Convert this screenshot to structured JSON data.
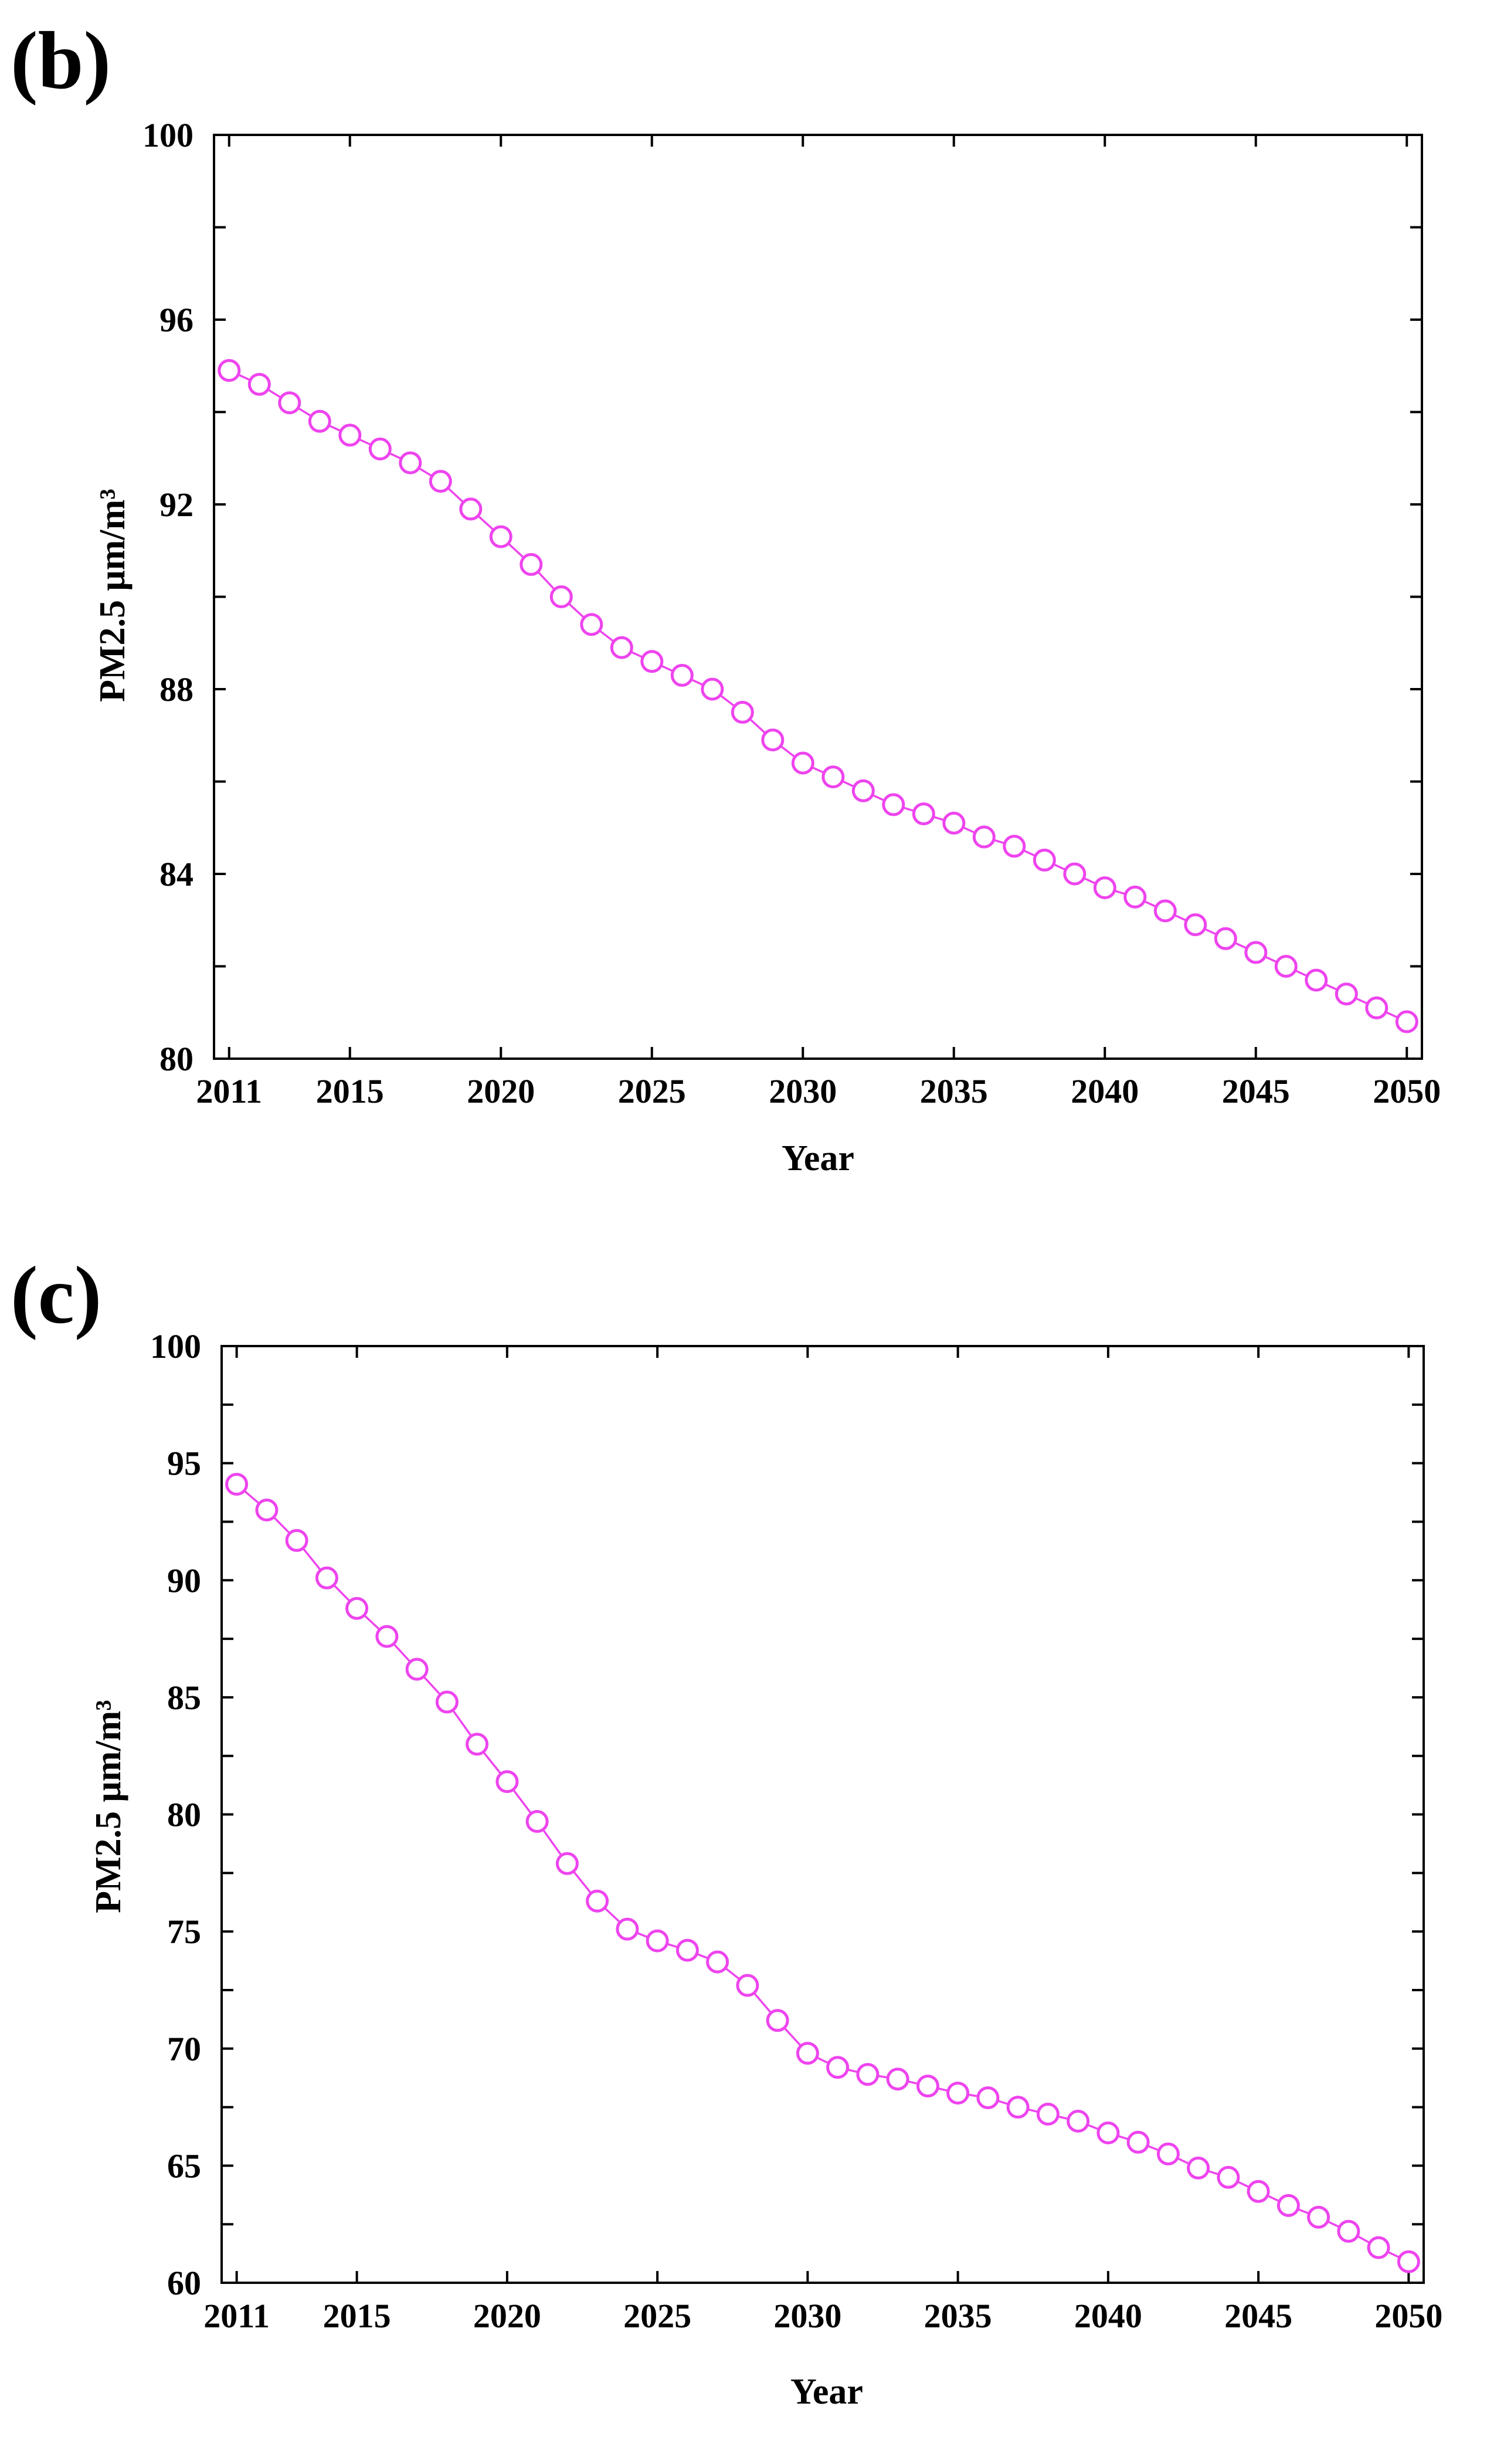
{
  "colors": {
    "series": "#ee44ee",
    "axis": "#000000",
    "background": "#ffffff"
  },
  "chart_data": [
    {
      "type": "line",
      "panel_label": "(b)",
      "xlabel": "Year",
      "ylabel": "PM2.5 μm/m³",
      "xlim": [
        2010.5,
        2050.5
      ],
      "ylim": [
        80,
        100
      ],
      "xticks": [
        2011,
        2015,
        2020,
        2025,
        2030,
        2035,
        2040,
        2045,
        2050
      ],
      "xtick_labels": [
        "2011",
        "2015",
        "2020",
        "2025",
        "2030",
        "2035",
        "2040",
        "2045",
        "2050"
      ],
      "yticks": [
        80,
        84,
        88,
        92,
        96,
        100
      ],
      "ytick_labels": [
        "80",
        "84",
        "88",
        "92",
        "96",
        "100"
      ],
      "grid": false,
      "series": [
        {
          "name": "PM2.5",
          "x": [
            2011,
            2012,
            2013,
            2014,
            2015,
            2016,
            2017,
            2018,
            2019,
            2020,
            2021,
            2022,
            2023,
            2024,
            2025,
            2026,
            2027,
            2028,
            2029,
            2030,
            2031,
            2032,
            2033,
            2034,
            2035,
            2036,
            2037,
            2038,
            2039,
            2040,
            2041,
            2042,
            2043,
            2044,
            2045,
            2046,
            2047,
            2048,
            2049,
            2050
          ],
          "values": [
            94.9,
            94.6,
            94.2,
            93.8,
            93.5,
            93.2,
            92.9,
            92.5,
            91.9,
            91.3,
            90.7,
            90.0,
            89.4,
            88.9,
            88.6,
            88.3,
            88.0,
            87.5,
            86.9,
            86.4,
            86.1,
            85.8,
            85.5,
            85.3,
            85.1,
            84.8,
            84.6,
            84.3,
            84.0,
            83.7,
            83.5,
            83.2,
            82.9,
            82.6,
            82.3,
            82.0,
            81.7,
            81.4,
            81.1,
            80.8
          ]
        }
      ]
    },
    {
      "type": "line",
      "panel_label": "(c)",
      "xlabel": "Year",
      "ylabel": "PM2.5 μm/m³",
      "xlim": [
        2010.5,
        2050.5
      ],
      "ylim": [
        60,
        100
      ],
      "xticks": [
        2011,
        2015,
        2020,
        2025,
        2030,
        2035,
        2040,
        2045,
        2050
      ],
      "xtick_labels": [
        "2011",
        "2015",
        "2020",
        "2025",
        "2030",
        "2035",
        "2040",
        "2045",
        "2050"
      ],
      "yticks": [
        60,
        65,
        70,
        75,
        80,
        85,
        90,
        95,
        100
      ],
      "ytick_labels": [
        "60",
        "65",
        "70",
        "75",
        "80",
        "85",
        "90",
        "95",
        "100"
      ],
      "grid": false,
      "series": [
        {
          "name": "PM2.5",
          "x": [
            2011,
            2012,
            2013,
            2014,
            2015,
            2016,
            2017,
            2018,
            2019,
            2020,
            2021,
            2022,
            2023,
            2024,
            2025,
            2026,
            2027,
            2028,
            2029,
            2030,
            2031,
            2032,
            2033,
            2034,
            2035,
            2036,
            2037,
            2038,
            2039,
            2040,
            2041,
            2042,
            2043,
            2044,
            2045,
            2046,
            2047,
            2048,
            2049,
            2050
          ],
          "values": [
            94.1,
            93.0,
            91.7,
            90.1,
            88.8,
            87.6,
            86.2,
            84.8,
            83.0,
            81.4,
            79.7,
            77.9,
            76.3,
            75.1,
            74.6,
            74.2,
            73.7,
            72.7,
            71.2,
            69.8,
            69.2,
            68.9,
            68.7,
            68.4,
            68.1,
            67.9,
            67.5,
            67.2,
            66.9,
            66.4,
            66.0,
            65.5,
            64.9,
            64.5,
            63.9,
            63.3,
            62.8,
            62.2,
            61.5,
            60.9
          ]
        }
      ]
    }
  ]
}
